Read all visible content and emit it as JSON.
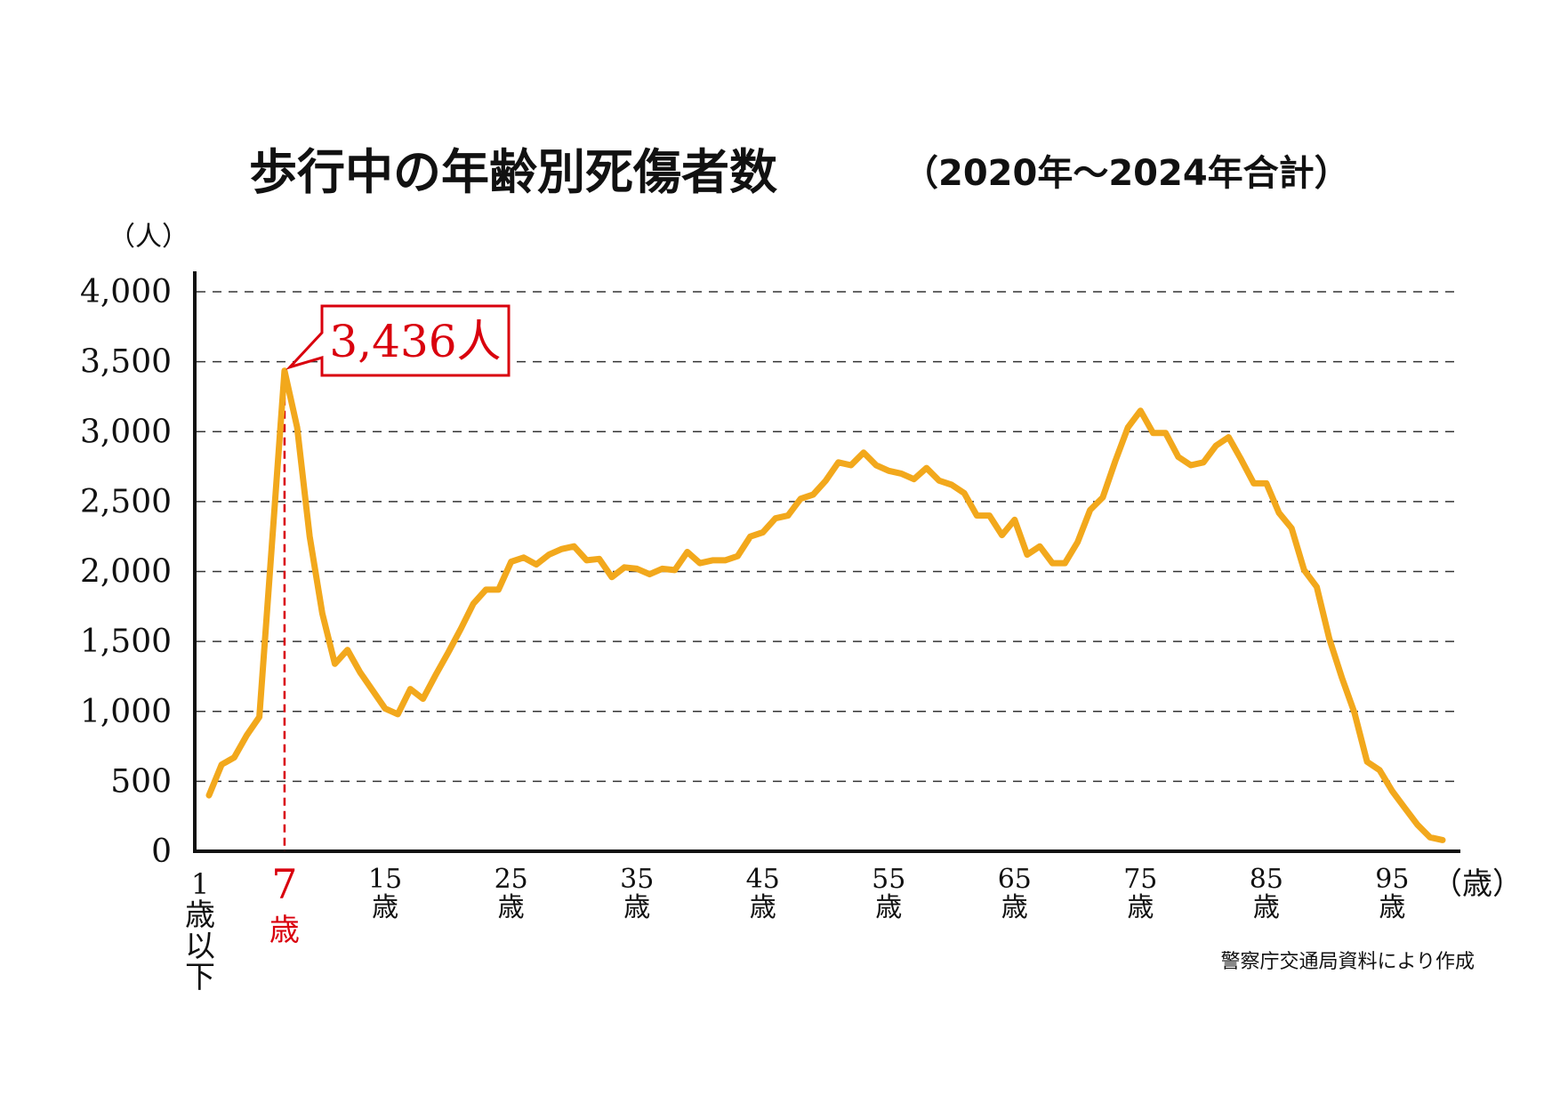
{
  "chart_data": {
    "type": "line",
    "title": "歩行中の年齢別死傷者数",
    "subtitle": "（2020年～2024年合計）",
    "y_unit": "（人）",
    "x_unit": "（歳）",
    "source": "警察庁交通局資料により作成",
    "ylim": [
      0,
      4000
    ],
    "yticks": [
      "0",
      "500",
      "1,000",
      "1,500",
      "2,000",
      "2,500",
      "3,000",
      "3,500",
      "4,000"
    ],
    "grid": true,
    "series_color": "#f2a81c",
    "highlight_color": "#d9000d",
    "x_first_label": [
      "1",
      "歳",
      "以",
      "下"
    ],
    "x_tick_labels": [
      {
        "age": 15,
        "num": "15",
        "unit": "歳"
      },
      {
        "age": 25,
        "num": "25",
        "unit": "歳"
      },
      {
        "age": 35,
        "num": "35",
        "unit": "歳"
      },
      {
        "age": 45,
        "num": "45",
        "unit": "歳"
      },
      {
        "age": 55,
        "num": "55",
        "unit": "歳"
      },
      {
        "age": 65,
        "num": "65",
        "unit": "歳"
      },
      {
        "age": 75,
        "num": "75",
        "unit": "歳"
      },
      {
        "age": 85,
        "num": "85",
        "unit": "歳"
      },
      {
        "age": 95,
        "num": "95",
        "unit": "歳"
      }
    ],
    "highlight": {
      "age": 7,
      "num": "7",
      "unit": "歳",
      "value": 3436,
      "label": "3,436人"
    },
    "x": [
      1,
      2,
      3,
      4,
      5,
      6,
      7,
      8,
      9,
      10,
      11,
      12,
      13,
      14,
      15,
      16,
      17,
      18,
      19,
      20,
      21,
      22,
      23,
      24,
      25,
      26,
      27,
      28,
      29,
      30,
      31,
      32,
      33,
      34,
      35,
      36,
      37,
      38,
      39,
      40,
      41,
      42,
      43,
      44,
      45,
      46,
      47,
      48,
      49,
      50,
      51,
      52,
      53,
      54,
      55,
      56,
      57,
      58,
      59,
      60,
      61,
      62,
      63,
      64,
      65,
      66,
      67,
      68,
      69,
      70,
      71,
      72,
      73,
      74,
      75,
      76,
      77,
      78,
      79,
      80,
      81,
      82,
      83,
      84,
      85,
      86,
      87,
      88,
      89,
      90,
      91,
      92,
      93,
      94,
      95,
      96,
      97,
      98,
      99
    ],
    "values": [
      400,
      620,
      670,
      830,
      960,
      2200,
      3436,
      3030,
      2250,
      1700,
      1340,
      1440,
      1280,
      1150,
      1020,
      980,
      1160,
      1090,
      1260,
      1420,
      1590,
      1770,
      1870,
      1870,
      2070,
      2100,
      2050,
      2120,
      2160,
      2180,
      2080,
      2090,
      1960,
      2030,
      2020,
      1980,
      2020,
      2010,
      2140,
      2060,
      2080,
      2080,
      2110,
      2250,
      2280,
      2380,
      2400,
      2520,
      2550,
      2650,
      2780,
      2760,
      2850,
      2760,
      2720,
      2700,
      2660,
      2740,
      2650,
      2620,
      2560,
      2400,
      2400,
      2260,
      2370,
      2120,
      2180,
      2060,
      2060,
      2210,
      2440,
      2530,
      2790,
      3030,
      3150,
      2990,
      2990,
      2820,
      2760,
      2780,
      2900,
      2960,
      2800,
      2630,
      2630,
      2420,
      2310,
      2010,
      1890,
      1520,
      1240,
      990,
      640,
      580,
      430,
      310,
      190,
      100,
      80
    ]
  }
}
